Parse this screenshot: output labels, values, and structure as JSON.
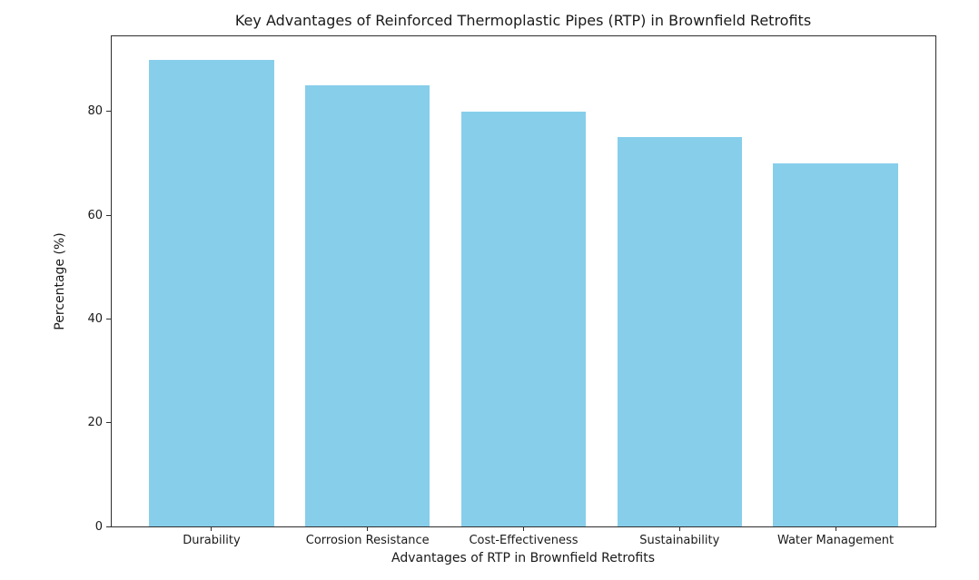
{
  "chart_data": {
    "type": "bar",
    "title": "Key Advantages of Reinforced Thermoplastic Pipes (RTP) in Brownfield Retrofits",
    "categories": [
      "Durability",
      "Corrosion Resistance",
      "Cost-Effectiveness",
      "Sustainability",
      "Water Management"
    ],
    "values": [
      90,
      85,
      80,
      75,
      70
    ],
    "xlabel": "Advantages of RTP in Brownfield Retrofits",
    "ylabel": "Percentage (%)",
    "ylim": [
      0,
      94.5
    ],
    "yticks": [
      0,
      20,
      40,
      60,
      80
    ],
    "bar_width_fraction": 0.8,
    "xlim": [
      -0.64,
      4.64
    ],
    "grid": false,
    "legend": null,
    "colors": {
      "bar_fill": "#87CEEB",
      "spine": "#2e2e2e",
      "text": "#1a1a1a",
      "background": "#ffffff"
    }
  }
}
